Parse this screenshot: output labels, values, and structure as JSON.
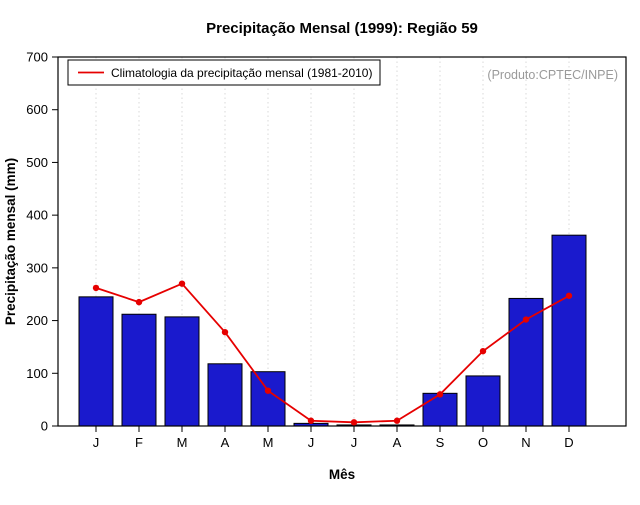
{
  "chart_data": {
    "type": "bar",
    "title": "Precipitação Mensal (1999): Região 59",
    "xlabel": "Mês",
    "ylabel": "Precipitação mensal (mm)",
    "categories": [
      "J",
      "F",
      "M",
      "A",
      "M",
      "J",
      "J",
      "A",
      "S",
      "O",
      "N",
      "D"
    ],
    "series": [
      {
        "name": "Precipitação Mensal (1999)",
        "type": "bar",
        "color": "#1a1acd",
        "edge_color": "#000000",
        "values": [
          245,
          212,
          207,
          118,
          103,
          5,
          2,
          2,
          62,
          95,
          242,
          362
        ]
      },
      {
        "name": "Climatologia da precipitação mensal (1981-2010)",
        "type": "line",
        "color": "#e60000",
        "marker": "circle",
        "values": [
          262,
          235,
          270,
          178,
          67,
          10,
          7,
          10,
          60,
          142,
          202,
          247
        ]
      }
    ],
    "ylim": [
      0,
      700
    ],
    "yticks": [
      0,
      100,
      200,
      300,
      400,
      500,
      600,
      700
    ],
    "legend": {
      "label": "Climatologia da precipitação mensal (1981-2010)",
      "position": "top-left",
      "line_color": "#e60000"
    },
    "annotation": {
      "text": "(Produto:CPTEC/INPE)",
      "color": "#9a9a9a",
      "position": "top-right"
    },
    "grid": {
      "vertical": true,
      "style": "dotted",
      "color": "#d8d8d8"
    }
  }
}
